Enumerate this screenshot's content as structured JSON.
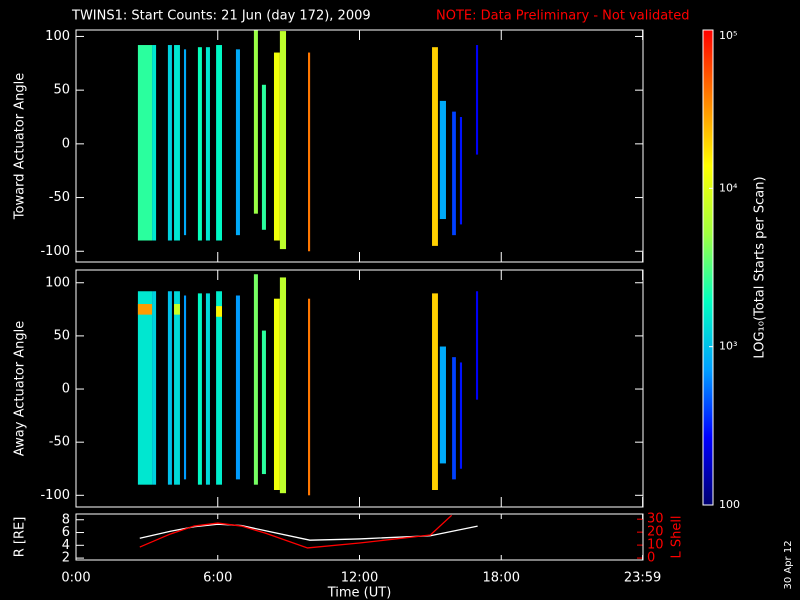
{
  "date_stamp": "30 Apr 12",
  "chart_data": [
    {
      "type": "heatmap",
      "title": "TWINS1: Start Counts: 21 Jun (day 172), 2009",
      "note": "NOTE: Data Preliminary - Not validated",
      "ylabel": "Toward Actuator Angle",
      "xlim": [
        0,
        24
      ],
      "ylim": [
        -110,
        106
      ],
      "yticks": [
        -100,
        -50,
        0,
        50,
        100
      ],
      "x_start": [
        2.62,
        3.22,
        3.89,
        4.15,
        4.57,
        5.16,
        5.5,
        5.93,
        6.77,
        7.53,
        7.87,
        8.38,
        8.63,
        9.82,
        15.07,
        15.4,
        15.92,
        16.25,
        16.93
      ],
      "x_end": [
        3.22,
        3.39,
        4.06,
        4.4,
        4.66,
        5.33,
        5.67,
        6.18,
        6.94,
        7.7,
        8.04,
        8.63,
        8.89,
        9.91,
        15.32,
        15.66,
        16.08,
        16.34,
        17.02
      ],
      "y_low": [
        -90,
        -90,
        -90,
        -90,
        -85,
        -90,
        -90,
        -90,
        -85,
        -65,
        -80,
        -90,
        -98,
        -100,
        -95,
        -70,
        -85,
        -75,
        -10
      ],
      "y_high": [
        92,
        92,
        92,
        92,
        88,
        90,
        90,
        92,
        88,
        108,
        55,
        85,
        105,
        85,
        90,
        40,
        30,
        25,
        92
      ],
      "values": [
        2500,
        1500,
        1200,
        1500,
        800,
        2000,
        1500,
        1800,
        800,
        5000,
        2500,
        12000,
        7000,
        40000,
        20000,
        800,
        400,
        300,
        250
      ],
      "colorbar": {
        "label": "LOG₁₀(Total Starts per Scan)",
        "zlim": [
          100,
          100000
        ],
        "log": true,
        "zticks": [
          100,
          {
            "value": 1000,
            "label": "10³"
          },
          {
            "value": 10000,
            "label": "10⁴"
          },
          {
            "value": 100000,
            "label": "10⁵"
          }
        ],
        "colormap": [
          "#000070",
          "#0000ff",
          "#00a0ff",
          "#00ffc0",
          "#a0ff40",
          "#ffff00",
          "#ff8000",
          "#ff0000"
        ]
      }
    },
    {
      "type": "heatmap",
      "ylabel": "Away Actuator Angle",
      "xlim": [
        0,
        24
      ],
      "ylim": [
        -111,
        112
      ],
      "yticks": [
        -100,
        -50,
        0,
        50,
        100
      ],
      "x_start": [
        2.62,
        3.22,
        3.89,
        4.15,
        4.57,
        5.16,
        5.5,
        5.93,
        6.77,
        7.53,
        7.87,
        8.38,
        8.63,
        9.82,
        15.07,
        15.4,
        15.92,
        16.25,
        16.93,
        2.62,
        4.15,
        5.93
      ],
      "x_end": [
        3.22,
        3.39,
        4.06,
        4.4,
        4.66,
        5.33,
        5.67,
        6.18,
        6.94,
        7.7,
        8.04,
        8.63,
        8.89,
        9.91,
        15.32,
        15.66,
        16.08,
        16.34,
        17.02,
        3.22,
        4.4,
        6.18
      ],
      "y_low": [
        -90,
        -90,
        -90,
        -90,
        -85,
        -90,
        -90,
        -90,
        -85,
        -90,
        -80,
        -95,
        -98,
        -100,
        -95,
        -70,
        -85,
        -75,
        -10,
        70,
        70,
        68
      ],
      "y_high": [
        92,
        92,
        92,
        92,
        88,
        90,
        90,
        92,
        88,
        108,
        55,
        85,
        105,
        85,
        90,
        40,
        30,
        25,
        92,
        80,
        80,
        78
      ],
      "values": [
        1500,
        1200,
        1000,
        1300,
        700,
        1800,
        1300,
        1600,
        700,
        4000,
        2500,
        12000,
        7000,
        40000,
        20000,
        800,
        400,
        300,
        250,
        30000,
        8000,
        15000
      ]
    },
    {
      "type": "line",
      "xlabel": "Time (UT)",
      "xlim": [
        0,
        24
      ],
      "xticks": [
        {
          "value": 0,
          "label": "0:00"
        },
        {
          "value": 6,
          "label": "6:00"
        },
        {
          "value": 12,
          "label": "12:00"
        },
        {
          "value": 18,
          "label": "18:00"
        },
        {
          "value": 23.983,
          "label": "23:59"
        }
      ],
      "ylabel": "R [RE]",
      "ylim": [
        1.7,
        8.9
      ],
      "yticks": [
        2,
        4,
        6,
        8
      ],
      "y2label": "L Shell",
      "y2lim": [
        -1.5,
        34
      ],
      "y2ticks": [
        0,
        10,
        20,
        30
      ],
      "y2color": "#ff0000",
      "series": [
        {
          "color": "#ffffff",
          "x": [
            2.7,
            4,
            5,
            6,
            7,
            8,
            9.9,
            12,
            15,
            17
          ],
          "values": [
            5.1,
            6.2,
            6.9,
            7.3,
            7.1,
            6.3,
            4.8,
            5.0,
            5.5,
            7.0
          ]
        },
        {
          "color": "#ff0000",
          "axis": "y2",
          "x": [
            2.7,
            4,
            5,
            6,
            7,
            8,
            9.8,
            12,
            15,
            15.9
          ],
          "values": [
            8.5,
            18.6,
            24.7,
            27,
            24.7,
            19.3,
            7.8,
            11.6,
            17.8,
            33
          ]
        }
      ]
    }
  ]
}
